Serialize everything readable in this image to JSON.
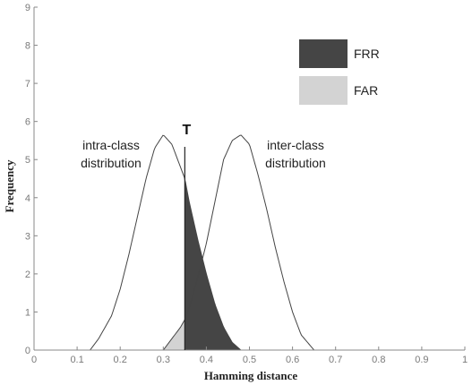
{
  "chart_data": {
    "type": "line",
    "title": "",
    "xlabel": "Hamming distance",
    "ylabel": "Frequency",
    "xlim": [
      0,
      1
    ],
    "ylim": [
      0,
      9
    ],
    "xticks": [
      "0",
      "0.1",
      "0.2",
      "0.3",
      "0.4",
      "0.5",
      "0.6",
      "0.7",
      "0.8",
      "0.9",
      "1"
    ],
    "yticks": [
      "0",
      "1",
      "2",
      "3",
      "4",
      "5",
      "6",
      "7",
      "8",
      "9"
    ],
    "grid": false,
    "threshold": {
      "label": "T",
      "x": 0.35
    },
    "series": [
      {
        "name": "intra-class distribution",
        "x": [
          0.13,
          0.15,
          0.18,
          0.2,
          0.22,
          0.24,
          0.26,
          0.28,
          0.3,
          0.32,
          0.34,
          0.35,
          0.36,
          0.38,
          0.4,
          0.42,
          0.44,
          0.46,
          0.48
        ],
        "y": [
          0,
          0.3,
          0.9,
          1.6,
          2.5,
          3.5,
          4.5,
          5.3,
          5.65,
          5.4,
          4.8,
          4.5,
          3.9,
          2.9,
          2.0,
          1.2,
          0.6,
          0.2,
          0
        ]
      },
      {
        "name": "inter-class distribution",
        "x": [
          0.3,
          0.32,
          0.34,
          0.35,
          0.36,
          0.38,
          0.4,
          0.42,
          0.44,
          0.46,
          0.48,
          0.5,
          0.52,
          0.54,
          0.56,
          0.58,
          0.6,
          0.62,
          0.65
        ],
        "y": [
          0,
          0.3,
          0.6,
          0.8,
          1.1,
          1.9,
          2.8,
          3.9,
          5.0,
          5.5,
          5.65,
          5.4,
          4.6,
          3.7,
          2.7,
          1.8,
          1.0,
          0.4,
          0
        ]
      }
    ],
    "legend": {
      "position": "top-right",
      "entries": [
        {
          "label": "FRR",
          "color": "#454545"
        },
        {
          "label": "FAR",
          "color": "#d3d3d3"
        }
      ]
    },
    "annotations": {
      "intra_line1": "intra-class",
      "intra_line2": "distribution",
      "inter_line1": "inter-class",
      "inter_line2": "distribution"
    }
  }
}
